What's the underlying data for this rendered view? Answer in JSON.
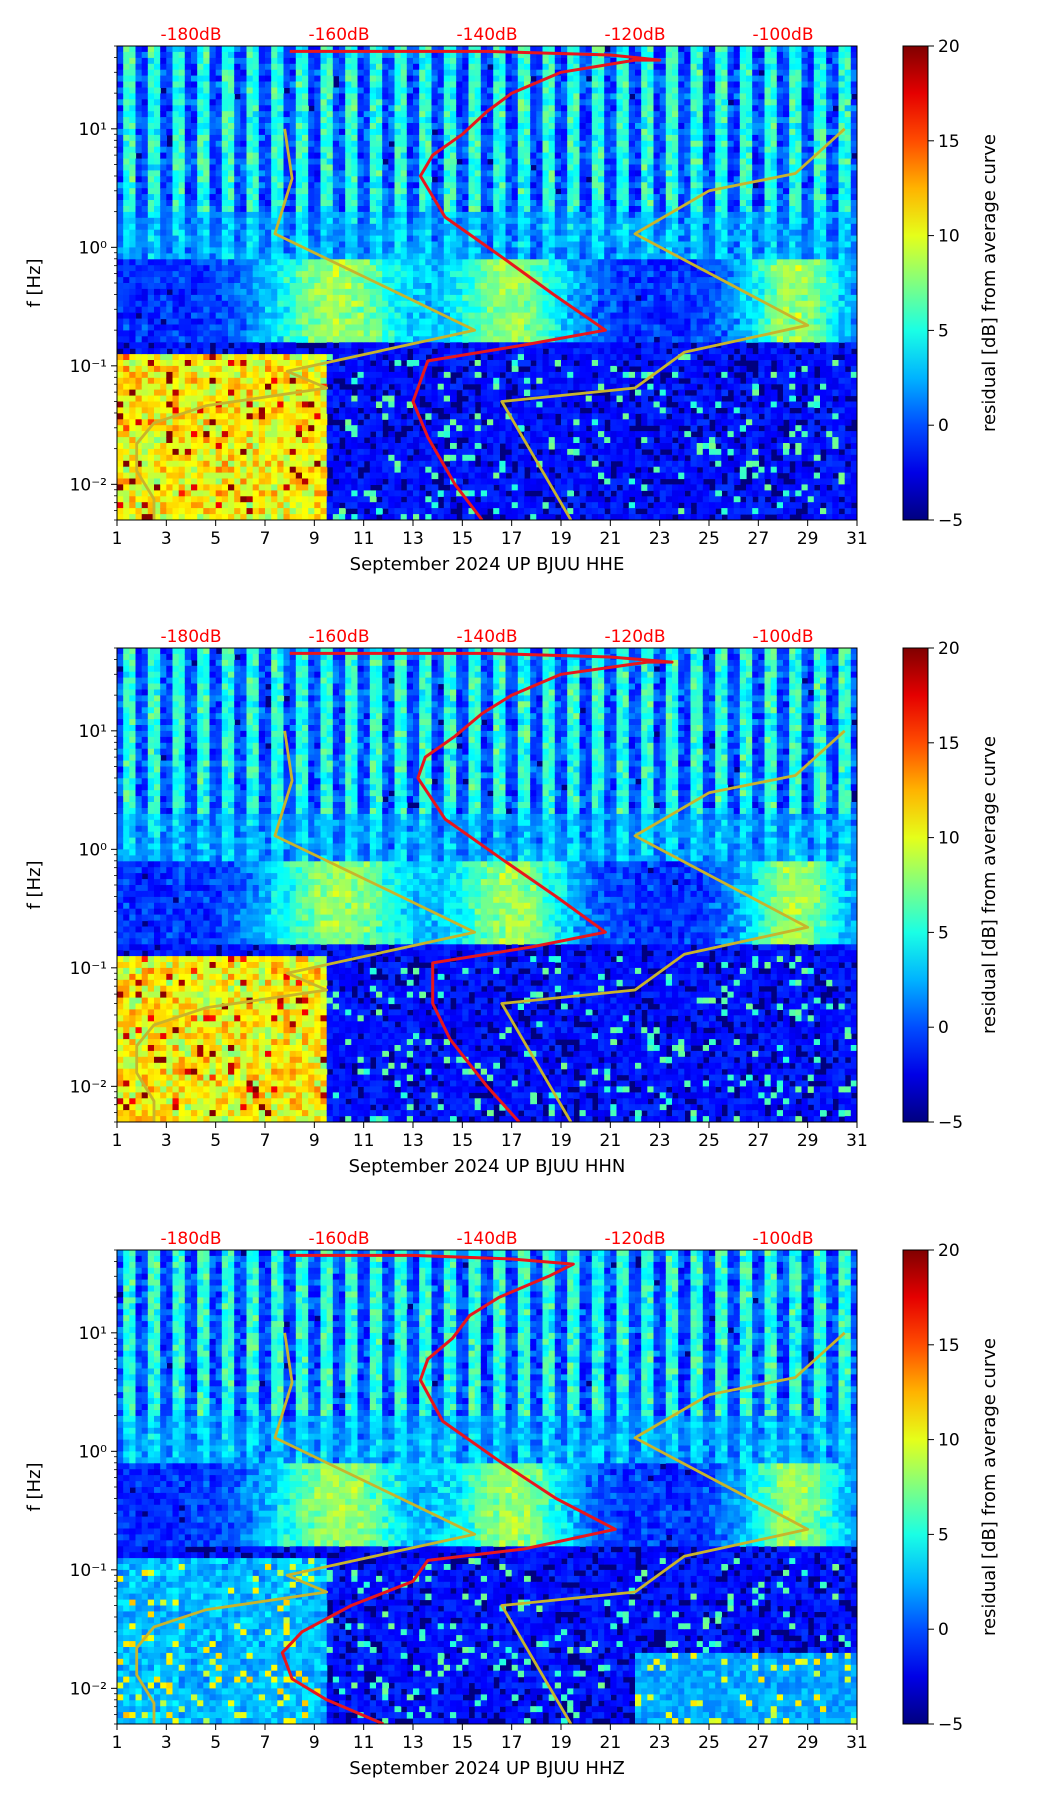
{
  "chart_data": [
    {
      "type": "heatmap",
      "title": "",
      "xlabel": "September 2024 UP BJUU  HHE",
      "ylabel": "f [Hz]",
      "x_range": [
        1,
        31
      ],
      "x_ticks": [
        "1",
        "3",
        "5",
        "7",
        "9",
        "11",
        "13",
        "15",
        "17",
        "19",
        "21",
        "23",
        "25",
        "27",
        "29",
        "31"
      ],
      "y_range": [
        0.005,
        50
      ],
      "y_scale": "log",
      "y_ticks": [
        {
          "value": 10,
          "label": "10¹"
        },
        {
          "value": 1,
          "label": "10⁰"
        },
        {
          "value": 0.1,
          "label": "10⁻¹"
        },
        {
          "value": 0.01,
          "label": "10⁻²"
        }
      ],
      "top_axis_labels": [
        "-180dB",
        "-160dB",
        "-140dB",
        "-120dB",
        "-100dB"
      ],
      "colorbar": {
        "label": "residual [dB] from average curve",
        "range": [
          -5,
          20
        ],
        "ticks": [
          "20",
          "15",
          "10",
          "5",
          "0",
          "−5"
        ],
        "colormap": "jet"
      },
      "series": [
        {
          "name": "noise model (yellow)",
          "color": "#c8b42c",
          "points": [
            [
              2.5,
              0.005
            ],
            [
              2.5,
              0.0075
            ],
            [
              1.8,
              0.013
            ],
            [
              1.8,
              0.022
            ],
            [
              2.5,
              0.033
            ],
            [
              4.6,
              0.046
            ],
            [
              9.5,
              0.065
            ],
            [
              7.9,
              0.09
            ],
            [
              15.5,
              0.2
            ],
            [
              12,
              0.45
            ],
            [
              7.4,
              1.3
            ],
            [
              8.1,
              3.8
            ],
            [
              7.8,
              10
            ]
          ]
        },
        {
          "name": "noise model (yellow)",
          "color": "#c8b42c",
          "points": [
            [
              19.4,
              0.005
            ],
            [
              16.6,
              0.05
            ],
            [
              22,
              0.065
            ],
            [
              24,
              0.13
            ],
            [
              29,
              0.22
            ],
            [
              22,
              1.3
            ],
            [
              25,
              3
            ],
            [
              28.5,
              4.2
            ],
            [
              30.5,
              10
            ]
          ]
        },
        {
          "name": "average curve (red)",
          "color": "#e8161c",
          "points": [
            [
              15.8,
              0.005
            ],
            [
              14.7,
              0.01
            ],
            [
              13.6,
              0.025
            ],
            [
              13,
              0.05
            ],
            [
              13.6,
              0.11
            ],
            [
              17.5,
              0.15
            ],
            [
              20.8,
              0.2
            ],
            [
              18.7,
              0.4
            ],
            [
              16.7,
              0.8
            ],
            [
              14.3,
              1.8
            ],
            [
              13.3,
              4
            ],
            [
              13.8,
              6
            ],
            [
              15,
              9
            ],
            [
              16,
              14
            ],
            [
              17,
              20
            ],
            [
              19,
              30
            ],
            [
              22,
              38
            ],
            [
              23,
              38
            ],
            [
              21,
              42
            ],
            [
              16,
              45
            ],
            [
              8,
              45
            ]
          ]
        }
      ]
    },
    {
      "type": "heatmap",
      "title": "",
      "xlabel": "September 2024 UP BJUU  HHN",
      "ylabel": "f [Hz]",
      "x_range": [
        1,
        31
      ],
      "x_ticks": [
        "1",
        "3",
        "5",
        "7",
        "9",
        "11",
        "13",
        "15",
        "17",
        "19",
        "21",
        "23",
        "25",
        "27",
        "29",
        "31"
      ],
      "y_range": [
        0.005,
        50
      ],
      "y_scale": "log",
      "y_ticks": [
        {
          "value": 10,
          "label": "10¹"
        },
        {
          "value": 1,
          "label": "10⁰"
        },
        {
          "value": 0.1,
          "label": "10⁻¹"
        },
        {
          "value": 0.01,
          "label": "10⁻²"
        }
      ],
      "top_axis_labels": [
        "-180dB",
        "-160dB",
        "-140dB",
        "-120dB",
        "-100dB"
      ],
      "colorbar": {
        "label": "residual [dB] from average curve",
        "range": [
          -5,
          20
        ],
        "ticks": [
          "20",
          "15",
          "10",
          "5",
          "0",
          "−5"
        ],
        "colormap": "jet"
      },
      "series": [
        {
          "name": "noise model (yellow)",
          "color": "#c8b42c",
          "points": [
            [
              2.5,
              0.005
            ],
            [
              2.5,
              0.0075
            ],
            [
              1.8,
              0.013
            ],
            [
              1.8,
              0.022
            ],
            [
              2.5,
              0.033
            ],
            [
              4.6,
              0.046
            ],
            [
              9.5,
              0.065
            ],
            [
              7.9,
              0.09
            ],
            [
              15.5,
              0.2
            ],
            [
              12,
              0.45
            ],
            [
              7.4,
              1.3
            ],
            [
              8.1,
              3.8
            ],
            [
              7.8,
              10
            ]
          ]
        },
        {
          "name": "noise model (yellow)",
          "color": "#c8b42c",
          "points": [
            [
              19.4,
              0.005
            ],
            [
              16.6,
              0.05
            ],
            [
              22,
              0.065
            ],
            [
              24,
              0.13
            ],
            [
              29,
              0.22
            ],
            [
              22,
              1.3
            ],
            [
              25,
              3
            ],
            [
              28.5,
              4.2
            ],
            [
              30.5,
              10
            ]
          ]
        },
        {
          "name": "average curve (red)",
          "color": "#e8161c",
          "points": [
            [
              17.3,
              0.005
            ],
            [
              16,
              0.01
            ],
            [
              14.5,
              0.025
            ],
            [
              13.8,
              0.05
            ],
            [
              13.8,
              0.11
            ],
            [
              17.8,
              0.15
            ],
            [
              20.8,
              0.2
            ],
            [
              18.8,
              0.4
            ],
            [
              16.7,
              0.8
            ],
            [
              14.3,
              1.8
            ],
            [
              13.2,
              4
            ],
            [
              13.5,
              6
            ],
            [
              14.7,
              9
            ],
            [
              15.8,
              14
            ],
            [
              17,
              20
            ],
            [
              19,
              30
            ],
            [
              22.5,
              38
            ],
            [
              23.5,
              38
            ],
            [
              21,
              42
            ],
            [
              16,
              45
            ],
            [
              8,
              45
            ]
          ]
        }
      ]
    },
    {
      "type": "heatmap",
      "title": "",
      "xlabel": "September 2024 UP BJUU  HHZ",
      "ylabel": "f [Hz]",
      "x_range": [
        1,
        31
      ],
      "x_ticks": [
        "1",
        "3",
        "5",
        "7",
        "9",
        "11",
        "13",
        "15",
        "17",
        "19",
        "21",
        "23",
        "25",
        "27",
        "29",
        "31"
      ],
      "y_range": [
        0.005,
        50
      ],
      "y_scale": "log",
      "y_ticks": [
        {
          "value": 10,
          "label": "10¹"
        },
        {
          "value": 1,
          "label": "10⁰"
        },
        {
          "value": 0.1,
          "label": "10⁻¹"
        },
        {
          "value": 0.01,
          "label": "10⁻²"
        }
      ],
      "top_axis_labels": [
        "-180dB",
        "-160dB",
        "-140dB",
        "-120dB",
        "-100dB"
      ],
      "colorbar": {
        "label": "residual [dB] from average curve",
        "range": [
          -5,
          20
        ],
        "ticks": [
          "20",
          "15",
          "10",
          "5",
          "0",
          "−5"
        ],
        "colormap": "jet"
      },
      "series": [
        {
          "name": "noise model (yellow)",
          "color": "#c8b42c",
          "points": [
            [
              2.5,
              0.005
            ],
            [
              2.5,
              0.0075
            ],
            [
              1.8,
              0.013
            ],
            [
              1.8,
              0.022
            ],
            [
              2.5,
              0.033
            ],
            [
              4.6,
              0.046
            ],
            [
              9.5,
              0.065
            ],
            [
              7.9,
              0.09
            ],
            [
              15.5,
              0.2
            ],
            [
              12,
              0.45
            ],
            [
              7.4,
              1.3
            ],
            [
              8.1,
              3.8
            ],
            [
              7.8,
              10
            ]
          ]
        },
        {
          "name": "noise model (yellow)",
          "color": "#c8b42c",
          "points": [
            [
              19.4,
              0.005
            ],
            [
              16.6,
              0.05
            ],
            [
              22,
              0.065
            ],
            [
              24,
              0.13
            ],
            [
              29,
              0.22
            ],
            [
              22,
              1.3
            ],
            [
              25,
              3
            ],
            [
              28.5,
              4.2
            ],
            [
              30.5,
              10
            ]
          ]
        },
        {
          "name": "average curve (red)",
          "color": "#e8161c",
          "points": [
            [
              11.8,
              0.005
            ],
            [
              9.5,
              0.008
            ],
            [
              8.1,
              0.012
            ],
            [
              7.7,
              0.02
            ],
            [
              8.5,
              0.03
            ],
            [
              10.5,
              0.05
            ],
            [
              13,
              0.08
            ],
            [
              13.6,
              0.12
            ],
            [
              17.5,
              0.15
            ],
            [
              21.2,
              0.22
            ],
            [
              18.8,
              0.4
            ],
            [
              16.6,
              0.8
            ],
            [
              14.2,
              1.8
            ],
            [
              13.3,
              4
            ],
            [
              13.6,
              6
            ],
            [
              14.6,
              9
            ],
            [
              15.3,
              14
            ],
            [
              16.5,
              20
            ],
            [
              18.5,
              30
            ],
            [
              19.5,
              38
            ],
            [
              17,
              42
            ],
            [
              13,
              45
            ],
            [
              8,
              45
            ]
          ]
        }
      ]
    }
  ]
}
